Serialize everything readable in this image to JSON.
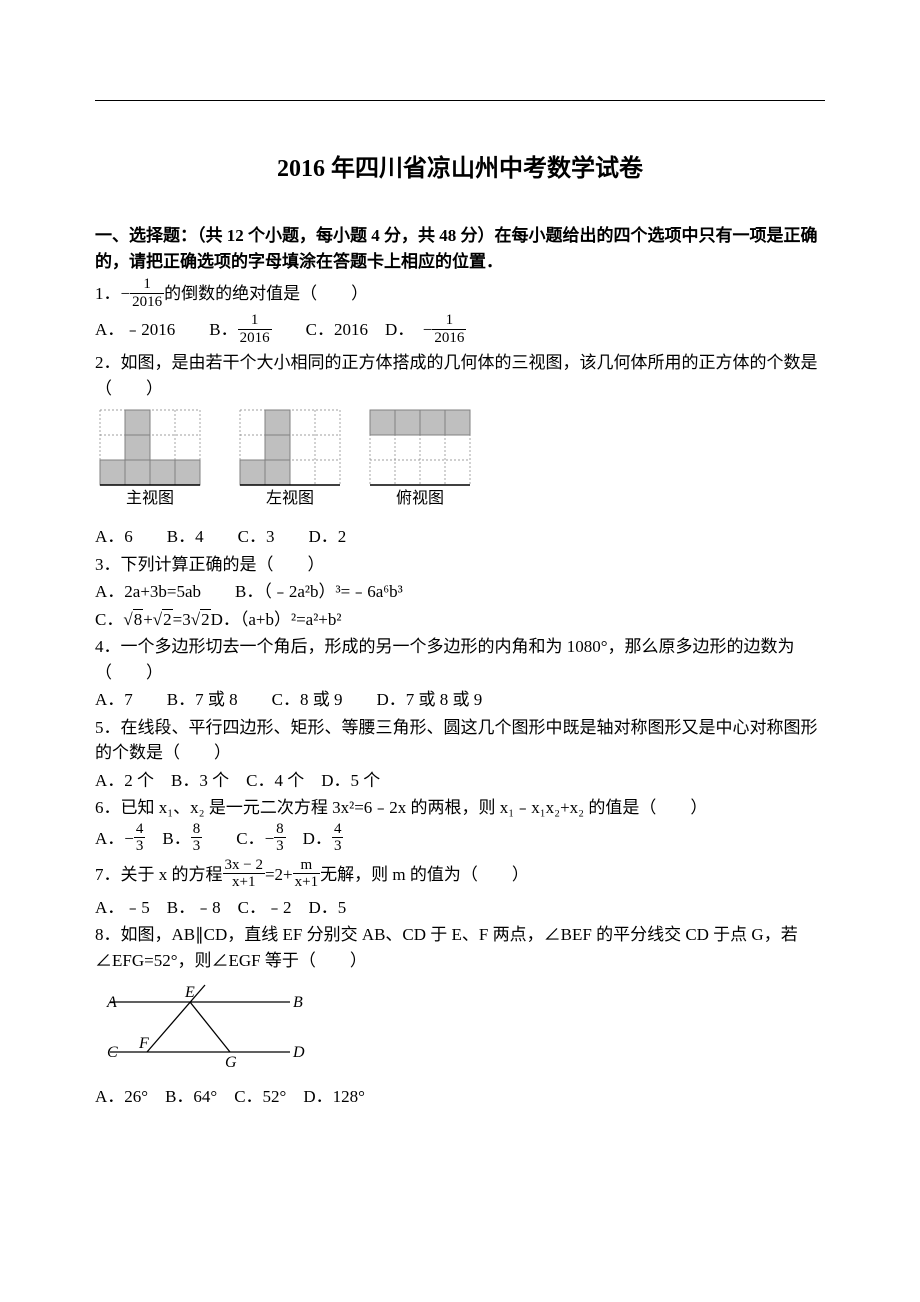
{
  "title": "2016 年四川省凉山州中考数学试卷",
  "section1": {
    "header": "一、选择题：（共 12 个小题，每小题 4 分，共 48 分）在每小题给出的四个选项中只有一项是正确的，请把正确选项的字母填涂在答题卡上相应的位置．"
  },
  "q1": {
    "prefix": "1．",
    "neg": "−",
    "frac_num": "1",
    "frac_den": "2016",
    "suffix": "的倒数的绝对值是（　　）",
    "optA_label": "A．",
    "optA_val": "﹣2016",
    "optB_label": "B．",
    "optB_num": "1",
    "optB_den": "2016",
    "optC_label": "C．",
    "optC_val": "2016",
    "optD_label": "D．",
    "optD_neg": "−",
    "optD_num": "1",
    "optD_den": "2016"
  },
  "q2": {
    "text": "2．如图，是由若干个大小相同的正方体搭成的几何体的三视图，该几何体所用的正方体的个数是（　　）",
    "labels": {
      "main": "主视图",
      "left": "左视图",
      "top": "俯视图"
    },
    "rows": 3,
    "cols": 4,
    "cell_size": 25,
    "fill_color": "#bfbfbf",
    "border_color": "#808080",
    "grid_color": "#808080",
    "bottom_line_color": "#000000",
    "view_main_filled": [
      [
        0,
        1
      ],
      [
        1,
        1
      ],
      [
        2,
        0
      ],
      [
        2,
        1
      ],
      [
        2,
        2
      ],
      [
        2,
        3
      ]
    ],
    "view_left_filled": [
      [
        0,
        1
      ],
      [
        1,
        1
      ],
      [
        2,
        0
      ],
      [
        2,
        1
      ]
    ],
    "view_top_filled": [
      [
        0,
        0
      ],
      [
        0,
        1
      ],
      [
        0,
        2
      ],
      [
        0,
        3
      ]
    ],
    "options": "A．6　　B．4　　C．3　　D．2"
  },
  "q3": {
    "text": "3．下列计算正确的是（　　）",
    "optAB": "A．2a+3b=5ab　　B．（﹣2a²b）³=﹣6a⁶b³",
    "optC_pre": "C．",
    "optC_sqrt1": "8",
    "optC_plus": "+",
    "optC_sqrt2": "2",
    "optC_eq": "=3",
    "optC_sqrt3": "2",
    "optD": "D．（a+b）²=a²+b²"
  },
  "q4": {
    "text": "4．一个多边形切去一个角后，形成的另一个多边形的内角和为 1080°，那么原多边形的边数为（　　）",
    "options": "A．7　　B．7 或 8　　C．8 或 9　　D．7 或 8 或 9"
  },
  "q5": {
    "text": "5．在线段、平行四边形、矩形、等腰三角形、圆这几个图形中既是轴对称图形又是中心对称图形的个数是（　　）",
    "options": "A．2 个　B．3 个　C．4 个　D．5 个"
  },
  "q6": {
    "text": "6．已知 x₁、x₂ 是一元二次方程 3x²=6﹣2x 的两根，则 x₁﹣x₁x₂+x₂ 的值是（　　）",
    "optA_label": "A．",
    "optA_neg": "−",
    "optA_num": "4",
    "optA_den": "3",
    "optB_label": "B．",
    "optB_num": "8",
    "optB_den": "3",
    "optC_label": "C．",
    "optC_neg": "−",
    "optC_num": "8",
    "optC_den": "3",
    "optD_label": "D．",
    "optD_num": "4",
    "optD_den": "3"
  },
  "q7": {
    "prefix": "7．关于 x 的方程",
    "frac1_num": "3x − 2",
    "frac1_den": "x+1",
    "mid": "=2+",
    "frac2_num": "m",
    "frac2_den": "x+1",
    "suffix": "无解，则 m 的值为（　　）",
    "options": "A．﹣5　B．﹣8　C．﹣2　D．5"
  },
  "q8": {
    "text": "8．如图，AB∥CD，直线 EF 分别交 AB、CD 于 E、F 两点，∠BEF 的平分线交 CD 于点 G，若∠EFG=52°，则∠EGF 等于（　　）",
    "labels": {
      "A": "A",
      "B": "B",
      "C": "C",
      "D": "D",
      "E": "E",
      "F": "F",
      "G": "G"
    },
    "line_color": "#000000",
    "font_style": "italic",
    "options": "A．26°　B．64°　C．52°　D．128°"
  }
}
